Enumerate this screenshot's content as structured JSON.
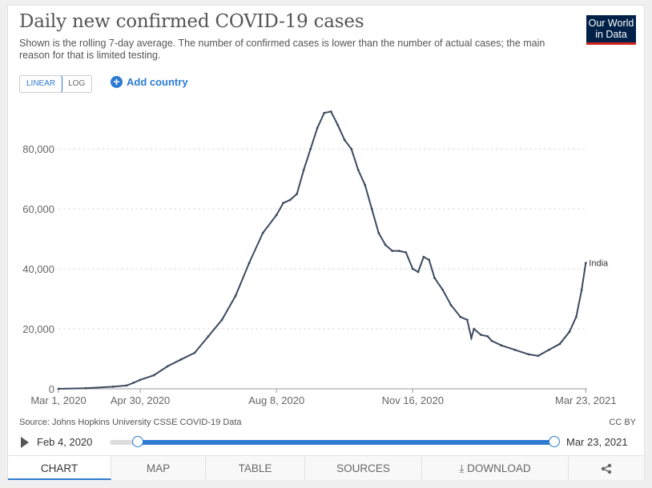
{
  "header": {
    "title": "Daily new confirmed COVID-19 cases",
    "subtitle": "Shown is the rolling 7-day average. The number of confirmed cases is lower than the number of actual cases; the main reason for that is limited testing.",
    "logo_line1": "Our World",
    "logo_line2": "in Data"
  },
  "controls": {
    "linear_label": "LINEAR",
    "log_label": "LOG",
    "add_country_label": "Add country"
  },
  "chart_data": {
    "type": "line",
    "title": "Daily new confirmed COVID-19 cases",
    "xlabel": "",
    "ylabel": "",
    "x_tick_labels": [
      "Mar 1, 2020",
      "Apr 30, 2020",
      "Aug 8, 2020",
      "Nov 16, 2020",
      "Mar 23, 2021"
    ],
    "y_ticks": [
      0,
      20000,
      40000,
      60000,
      80000
    ],
    "y_tick_labels": [
      "0",
      "20,000",
      "40,000",
      "60,000",
      "80,000"
    ],
    "ylim": [
      0,
      95000
    ],
    "xlim_days": [
      0,
      388
    ],
    "x_tick_days": [
      0,
      60,
      160,
      260,
      387
    ],
    "grid": true,
    "series": [
      {
        "name": "India",
        "color": "#3c4a5e",
        "points": [
          [
            0,
            0
          ],
          [
            20,
            200
          ],
          [
            40,
            700
          ],
          [
            50,
            1100
          ],
          [
            55,
            2000
          ],
          [
            60,
            3000
          ],
          [
            70,
            4500
          ],
          [
            80,
            7500
          ],
          [
            90,
            9800
          ],
          [
            100,
            12000
          ],
          [
            110,
            17500
          ],
          [
            120,
            23000
          ],
          [
            130,
            31000
          ],
          [
            140,
            42000
          ],
          [
            150,
            52000
          ],
          [
            160,
            58000
          ],
          [
            165,
            62000
          ],
          [
            170,
            63000
          ],
          [
            175,
            65000
          ],
          [
            180,
            73000
          ],
          [
            185,
            80000
          ],
          [
            190,
            87000
          ],
          [
            195,
            92000
          ],
          [
            200,
            92500
          ],
          [
            205,
            88000
          ],
          [
            210,
            83000
          ],
          [
            215,
            80000
          ],
          [
            220,
            73000
          ],
          [
            225,
            68000
          ],
          [
            230,
            60000
          ],
          [
            235,
            52000
          ],
          [
            240,
            48000
          ],
          [
            245,
            46000
          ],
          [
            250,
            46000
          ],
          [
            255,
            45500
          ],
          [
            260,
            40000
          ],
          [
            264,
            39000
          ],
          [
            268,
            44000
          ],
          [
            272,
            43000
          ],
          [
            276,
            37000
          ],
          [
            282,
            33000
          ],
          [
            288,
            28000
          ],
          [
            295,
            24000
          ],
          [
            300,
            23000
          ],
          [
            303,
            17000
          ],
          [
            305,
            20000
          ],
          [
            310,
            18000
          ],
          [
            315,
            17500
          ],
          [
            318,
            16000
          ],
          [
            325,
            14500
          ],
          [
            335,
            13000
          ],
          [
            345,
            11500
          ],
          [
            352,
            11000
          ],
          [
            360,
            13000
          ],
          [
            368,
            15000
          ],
          [
            375,
            19000
          ],
          [
            380,
            24000
          ],
          [
            384,
            33000
          ],
          [
            387,
            42000
          ]
        ]
      }
    ]
  },
  "footer": {
    "source": "Source: Johns Hopkins University CSSE COVID-19 Data",
    "license": "CC BY"
  },
  "timeline": {
    "start_label": "Feb 4, 2020",
    "end_label": "Mar 23, 2021",
    "start_fraction": 0.063,
    "end_fraction": 1.0
  },
  "tabs": [
    {
      "label": "CHART",
      "active": true
    },
    {
      "label": "MAP"
    },
    {
      "label": "TABLE"
    },
    {
      "label": "SOURCES"
    },
    {
      "label": "⤓ DOWNLOAD"
    },
    {
      "label": "share"
    }
  ]
}
